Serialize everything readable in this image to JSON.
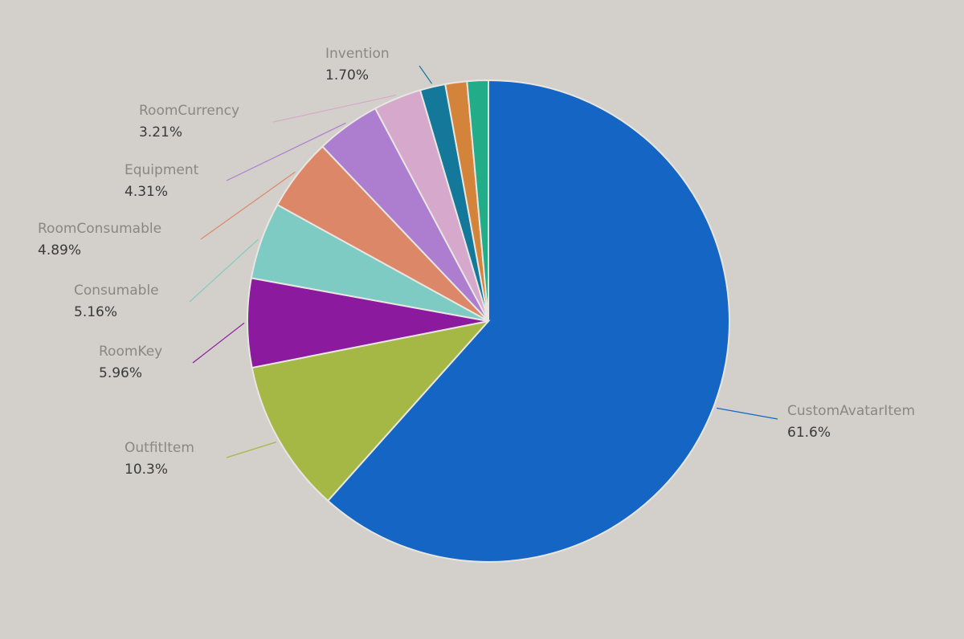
{
  "chart_data": {
    "type": "pie",
    "categories": [
      "CustomAvatarItem",
      "OutfitItem",
      "RoomKey",
      "Consumable",
      "RoomConsumable",
      "Equipment",
      "RoomCurrency",
      "Invention",
      null,
      null
    ],
    "values": [
      61.6,
      10.3,
      5.96,
      5.16,
      4.89,
      4.31,
      3.21,
      1.7,
      1.45,
      1.42
    ],
    "value_labels": [
      "61.6%",
      "10.3%",
      "5.96%",
      "5.16%",
      "4.89%",
      "4.31%",
      "3.21%",
      "1.70%",
      null,
      null
    ],
    "colors": [
      "#1565c4",
      "#a5b845",
      "#8c1a9e",
      "#7ecbc3",
      "#dc8767",
      "#ad7ed0",
      "#d6a8cb",
      "#13789a",
      "#d4843a",
      "#22ad88"
    ]
  }
}
